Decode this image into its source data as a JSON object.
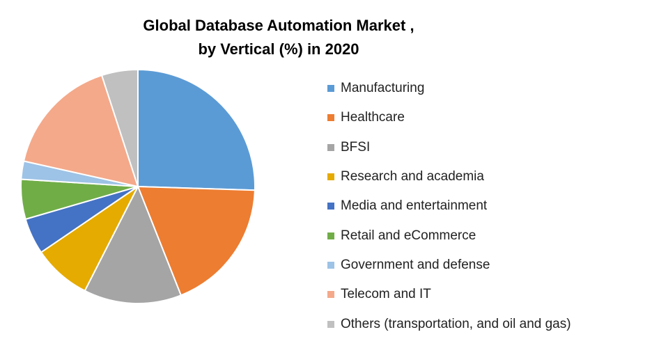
{
  "chart_data": {
    "type": "pie",
    "title_lines": [
      "Global Database Automation Market ,",
      "by Vertical (%) in 2020"
    ],
    "legend_position": "right",
    "slices": [
      {
        "name": "Manufacturing",
        "value": 25.5,
        "color": "#5B9BD5"
      },
      {
        "name": "Healthcare",
        "value": 18.5,
        "color": "#ED7D31"
      },
      {
        "name": "BFSI",
        "value": 13.5,
        "color": "#A5A5A5"
      },
      {
        "name": "Research and academia",
        "value": 8.0,
        "color": "#E5AB00"
      },
      {
        "name": "Media and entertainment",
        "value": 5.0,
        "color": "#4472C4"
      },
      {
        "name": "Retail and eCommerce",
        "value": 5.5,
        "color": "#70AD47"
      },
      {
        "name": "Government and defense",
        "value": 2.5,
        "color": "#9DC3E6"
      },
      {
        "name": "Telecom and IT",
        "value": 16.5,
        "color": "#F4A98A"
      },
      {
        "name": "Others (transportation, and oil and gas)",
        "value": 5.0,
        "color": "#C0C0C0"
      }
    ]
  }
}
